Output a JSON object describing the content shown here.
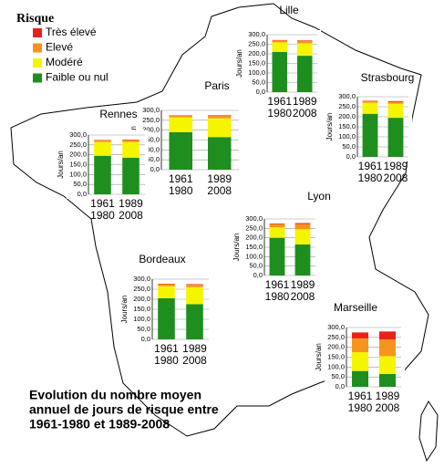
{
  "legend": {
    "title": "Risque",
    "entries": [
      {
        "name": "Très élevé",
        "color": "#e8221b"
      },
      {
        "name": "Elevé",
        "color": "#f7941d"
      },
      {
        "name": "Modéré",
        "color": "#f5f500"
      },
      {
        "name": "Faible ou nul",
        "color": "#1e8f1e"
      }
    ]
  },
  "caption": [
    "Evolution du nombre moyen",
    "annuel de jours de risque entre",
    "1961-1980 et 1989-2008"
  ],
  "chart_data": [
    {
      "type": "bar",
      "stacked": true,
      "title": "Lille",
      "ylabel": "Jours/an",
      "categories": [
        "1961\n1980",
        "1989\n2008"
      ],
      "ylim": [
        0,
        300
      ],
      "yticks": [
        {
          "value": 0,
          "label": "0,0"
        },
        {
          "value": 50,
          "label": "50,0"
        },
        {
          "value": 100,
          "label": "100,0"
        },
        {
          "value": 150,
          "label": "150,0"
        },
        {
          "value": 200,
          "label": "200,0"
        },
        {
          "value": 250,
          "label": "250,0"
        },
        {
          "value": 300,
          "label": "300,0"
        }
      ],
      "series": [
        {
          "values": [
            2,
            3
          ]
        },
        {
          "values": [
            10,
            12
          ]
        },
        {
          "values": [
            50,
            65
          ]
        },
        {
          "values": [
            210,
            190
          ]
        }
      ]
    },
    {
      "type": "bar",
      "stacked": true,
      "title": "Paris",
      "ylabel": "Jours/an",
      "categories": [
        "1961\n1980",
        "1989\n2008"
      ],
      "ylim": [
        0,
        300
      ],
      "yticks": [
        {
          "value": 0,
          "label": "0,0"
        },
        {
          "value": 50,
          "label": "50,0"
        },
        {
          "value": 100,
          "label": "100,0"
        },
        {
          "value": 150,
          "label": "150,0"
        },
        {
          "value": 200,
          "label": "200,0"
        },
        {
          "value": 250,
          "label": "250,0"
        },
        {
          "value": 300,
          "label": "300,0"
        }
      ],
      "series": [
        {
          "values": [
            2,
            3
          ]
        },
        {
          "values": [
            8,
            12
          ]
        },
        {
          "values": [
            75,
            95
          ]
        },
        {
          "values": [
            190,
            165
          ]
        }
      ]
    },
    {
      "type": "bar",
      "stacked": true,
      "title": "Strasbourg",
      "ylabel": "Jours/an",
      "categories": [
        "1961\n1980",
        "1989\n2008"
      ],
      "ylim": [
        0,
        300
      ],
      "yticks": [
        {
          "value": 0,
          "label": "0,0"
        },
        {
          "value": 50,
          "label": "50,0"
        },
        {
          "value": 100,
          "label": "100,0"
        },
        {
          "value": 150,
          "label": "150,0"
        },
        {
          "value": 200,
          "label": "200,0"
        },
        {
          "value": 250,
          "label": "250,0"
        },
        {
          "value": 300,
          "label": "300,0"
        }
      ],
      "series": [
        {
          "values": [
            2,
            3
          ]
        },
        {
          "values": [
            8,
            10
          ]
        },
        {
          "values": [
            55,
            70
          ]
        },
        {
          "values": [
            215,
            195
          ]
        }
      ]
    },
    {
      "type": "bar",
      "stacked": true,
      "title": "Rennes",
      "ylabel": "Jours/an",
      "categories": [
        "1961\n1980",
        "1989\n2008"
      ],
      "ylim": [
        0,
        300
      ],
      "yticks": [
        {
          "value": 0,
          "label": "0,0"
        },
        {
          "value": 50,
          "label": "50,0"
        },
        {
          "value": 100,
          "label": "100,0"
        },
        {
          "value": 150,
          "label": "150,0"
        },
        {
          "value": 200,
          "label": "200,0"
        },
        {
          "value": 250,
          "label": "250,0"
        },
        {
          "value": 300,
          "label": "300,0"
        }
      ],
      "series": [
        {
          "values": [
            2,
            2
          ]
        },
        {
          "values": [
            8,
            10
          ]
        },
        {
          "values": [
            70,
            80
          ]
        },
        {
          "values": [
            195,
            185
          ]
        }
      ]
    },
    {
      "type": "bar",
      "stacked": true,
      "title": "Lyon",
      "ylabel": "Jours/an",
      "categories": [
        "1961\n1980",
        "1989\n2008"
      ],
      "ylim": [
        0,
        300
      ],
      "yticks": [
        {
          "value": 0,
          "label": "0,0"
        },
        {
          "value": 50,
          "label": "50,0"
        },
        {
          "value": 100,
          "label": "100,0"
        },
        {
          "value": 150,
          "label": "150,0"
        },
        {
          "value": 200,
          "label": "200,0"
        },
        {
          "value": 250,
          "label": "250,0"
        },
        {
          "value": 300,
          "label": "300,0"
        }
      ],
      "series": [
        {
          "values": [
            3,
            5
          ]
        },
        {
          "values": [
            18,
            28
          ]
        },
        {
          "values": [
            55,
            80
          ]
        },
        {
          "values": [
            200,
            165
          ]
        }
      ]
    },
    {
      "type": "bar",
      "stacked": true,
      "title": "Bordeaux",
      "ylabel": "Jours/an",
      "categories": [
        "1961\n1980",
        "1989\n2008"
      ],
      "ylim": [
        0,
        300
      ],
      "yticks": [
        {
          "value": 0,
          "label": "0,0"
        },
        {
          "value": 50,
          "label": "50,0"
        },
        {
          "value": 100,
          "label": "100,0"
        },
        {
          "value": 150,
          "label": "150,0"
        },
        {
          "value": 200,
          "label": "200,0"
        },
        {
          "value": 250,
          "label": "250,0"
        },
        {
          "value": 300,
          "label": "300,0"
        }
      ],
      "series": [
        {
          "values": [
            2,
            3
          ]
        },
        {
          "values": [
            10,
            12
          ]
        },
        {
          "values": [
            60,
            85
          ]
        },
        {
          "values": [
            205,
            175
          ]
        }
      ]
    },
    {
      "type": "bar",
      "stacked": true,
      "title": "Marseille",
      "ylabel": "Jours/an",
      "categories": [
        "1961\n1980",
        "1989\n2008"
      ],
      "ylim": [
        0,
        300
      ],
      "yticks": [
        {
          "value": 0,
          "label": "0,0"
        },
        {
          "value": 50,
          "label": "50,0"
        },
        {
          "value": 100,
          "label": "100,0"
        },
        {
          "value": 150,
          "label": "150,0"
        },
        {
          "value": 200,
          "label": "200,0"
        },
        {
          "value": 250,
          "label": "250,0"
        },
        {
          "value": 300,
          "label": "300,0"
        }
      ],
      "series": [
        {
          "values": [
            30,
            40
          ]
        },
        {
          "values": [
            70,
            85
          ]
        },
        {
          "values": [
            95,
            90
          ]
        },
        {
          "values": [
            80,
            65
          ]
        }
      ]
    }
  ]
}
